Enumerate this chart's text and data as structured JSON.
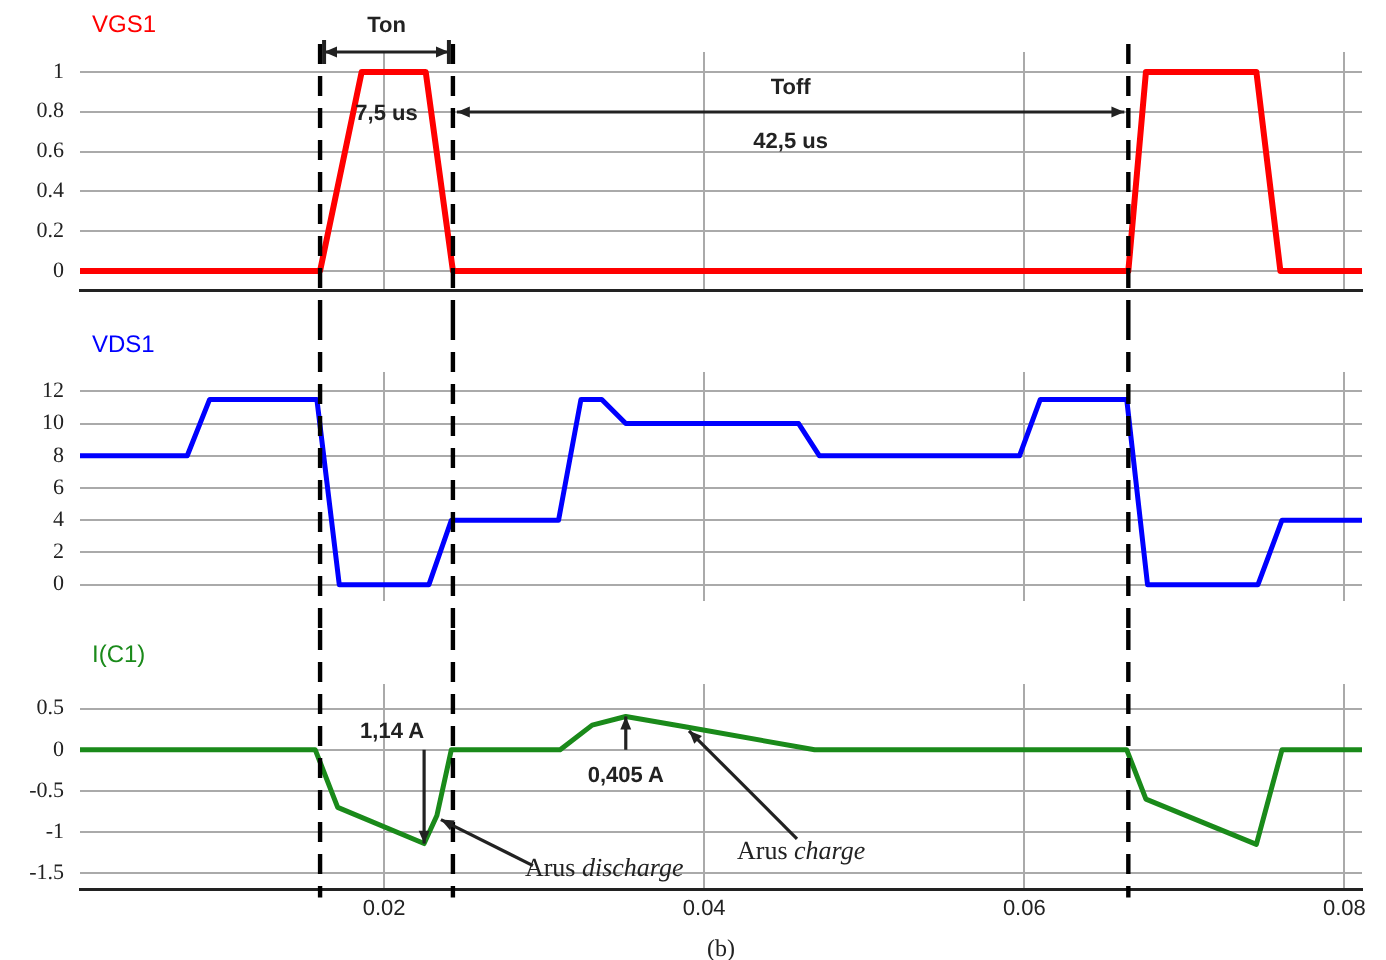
{
  "chart_data": [
    {
      "type": "line",
      "title": "VGS1",
      "xlim": [
        0.001,
        0.0811
      ],
      "xticks": [
        0.02,
        0.04,
        0.06,
        0.08
      ],
      "ylim": [
        -0.1,
        1.1
      ],
      "yticks": [
        0,
        0.2,
        0.4,
        0.6,
        0.8,
        1
      ],
      "grid": true,
      "tick_labels": "y",
      "series": [
        {
          "color": "#ff0000",
          "x": [
            0.001,
            0.016,
            0.0186,
            0.0226,
            0.0243,
            0.0665,
            0.0676,
            0.0745,
            0.076,
            0.0811
          ],
          "values": [
            0,
            0,
            1,
            1,
            0,
            0,
            1,
            1,
            0,
            0
          ]
        }
      ],
      "ref_lines": [
        {
          "axis": "x",
          "value": 0.016,
          "color": "#000000",
          "line_style": "dashed"
        },
        {
          "axis": "x",
          "value": 0.0243,
          "color": "#000000",
          "line_style": "dashed"
        },
        {
          "axis": "x",
          "value": 0.0665,
          "color": "#000000",
          "line_style": "dashed"
        }
      ],
      "annotations": [
        "Ton",
        "7,5 us",
        "Toff",
        "42,5 us"
      ]
    },
    {
      "type": "line",
      "title": "VDS1",
      "xlim": [
        0.001,
        0.0811
      ],
      "xticks": [
        0.02,
        0.04,
        0.06,
        0.08
      ],
      "ylim": [
        -1,
        13.2
      ],
      "yticks": [
        0,
        2,
        4,
        6,
        8,
        10,
        12
      ],
      "grid": true,
      "tick_labels": "y",
      "series": [
        {
          "color": "#0000ff",
          "x": [
            0.001,
            0.0077,
            0.0091,
            0.0158,
            0.0172,
            0.0228,
            0.0242,
            0.0309,
            0.0323,
            0.0336,
            0.0351,
            0.0459,
            0.0472,
            0.0597,
            0.061,
            0.0664,
            0.0677,
            0.0746,
            0.0761,
            0.0811
          ],
          "values": [
            8,
            8,
            11.5,
            11.5,
            0,
            0,
            4,
            4,
            11.5,
            11.5,
            10,
            10,
            8,
            8,
            11.5,
            11.5,
            0,
            0,
            4,
            4
          ]
        }
      ],
      "ref_lines": [
        {
          "axis": "x",
          "value": 0.016,
          "color": "#000000",
          "line_style": "dashed"
        },
        {
          "axis": "x",
          "value": 0.0243,
          "color": "#000000",
          "line_style": "dashed"
        },
        {
          "axis": "x",
          "value": 0.0665,
          "color": "#000000",
          "line_style": "dashed"
        }
      ]
    },
    {
      "type": "line",
      "title": "I(C1)",
      "xlim": [
        0.001,
        0.0811
      ],
      "xticks": [
        0.02,
        0.04,
        0.06,
        0.08
      ],
      "ylim": [
        -1.7,
        0.8
      ],
      "yticks": [
        -1.5,
        -1,
        -0.5,
        0,
        0.5
      ],
      "grid": true,
      "series": [
        {
          "color": "#1a8a1a",
          "x": [
            0.001,
            0.0157,
            0.0171,
            0.0225,
            0.0233,
            0.0242,
            0.031,
            0.033,
            0.0351,
            0.0388,
            0.0469,
            0.0664,
            0.0676,
            0.0745,
            0.0761,
            0.0811
          ],
          "values": [
            0,
            0,
            -0.7,
            -1.14,
            -0.8,
            0,
            0,
            0.3,
            0.405,
            0.28,
            0,
            0,
            -0.6,
            -1.15,
            0,
            0
          ]
        }
      ],
      "ref_lines": [
        {
          "axis": "x",
          "value": 0.016,
          "color": "#000000",
          "line_style": "dashed"
        },
        {
          "axis": "x",
          "value": 0.0243,
          "color": "#000000",
          "line_style": "dashed"
        },
        {
          "axis": "x",
          "value": 0.0665,
          "color": "#000000",
          "line_style": "dashed"
        }
      ],
      "annotations": [
        {
          "text": "1,14 A",
          "x": 0.0225,
          "y": -1.14
        },
        {
          "text": "0,405 A",
          "x": 0.0351,
          "y": 0.405
        },
        {
          "text": "Arus discharge",
          "x": 0.0233,
          "y": -0.8
        },
        {
          "text": "Arus charge",
          "x": 0.0388,
          "y": 0.28
        },
        "(b)"
      ]
    }
  ]
}
